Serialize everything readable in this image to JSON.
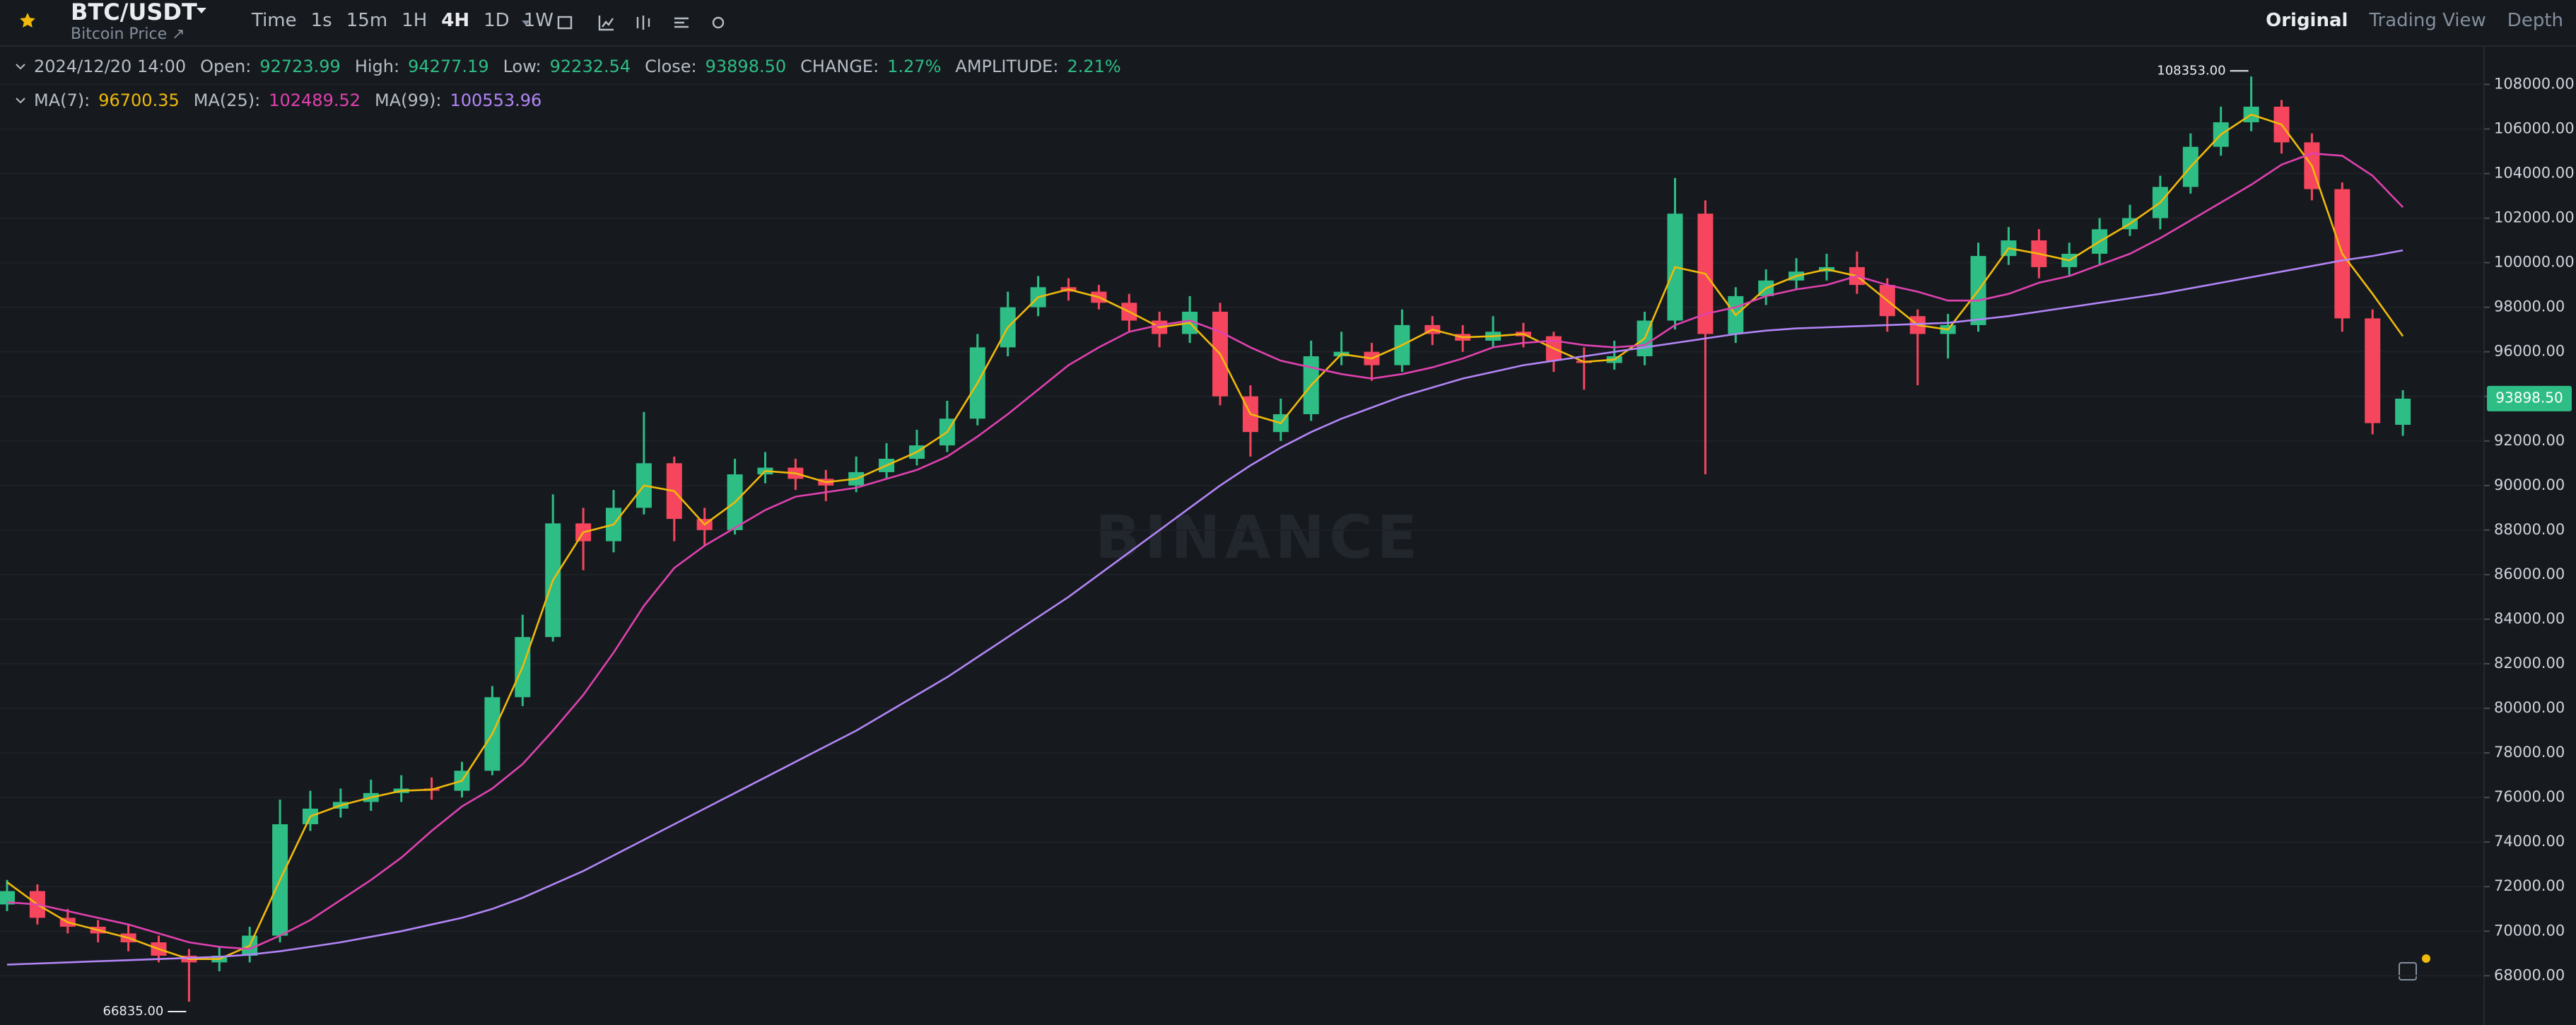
{
  "header": {
    "symbol": "BTC/USDT",
    "subtitle": "Bitcoin Price ↗",
    "intervals": [
      "Time",
      "1s",
      "15m",
      "1H",
      "4H",
      "1D",
      "1W"
    ],
    "active_interval": "4H",
    "views": [
      "Original",
      "Trading View",
      "Depth"
    ]
  },
  "info": {
    "date": "2024/12/20 14:00",
    "labels": [
      "Open:",
      "High:",
      "Low:",
      "Close:",
      "CHANGE:",
      "AMPLITUDE:"
    ],
    "change": "1.27%",
    "amplitude": "2.21%"
  },
  "chart_data": {
    "type": "candlestick",
    "up_color": "#2ebd85",
    "down_color": "#f6465d",
    "grid": true,
    "open": [
      71200,
      71800,
      70600,
      70200,
      69900,
      69500,
      68900,
      68600,
      68900,
      69800,
      74800,
      75500,
      75800,
      76200,
      76400,
      76300,
      77200,
      80500,
      83200,
      88300,
      87500,
      89000,
      91000,
      88500,
      88000,
      90500,
      90800,
      90300,
      90000,
      90600,
      91200,
      91800,
      93000,
      96200,
      98000,
      98900,
      98700,
      98200,
      97400,
      96800,
      97800,
      94000,
      92400,
      93200,
      95800,
      96000,
      95400,
      97200,
      96800,
      96500,
      96900,
      96700,
      95600,
      95500,
      95800,
      97400,
      102200,
      96800,
      98500,
      99200,
      99600,
      99800,
      99000,
      97600,
      96800,
      97200,
      100300,
      101000,
      99800,
      100400,
      101500,
      102000,
      103400,
      105200,
      106300,
      107000,
      105400,
      103300,
      97500,
      92723.99
    ],
    "high": [
      72300,
      72100,
      71000,
      70500,
      70300,
      69800,
      69200,
      69300,
      70200,
      75900,
      76300,
      76400,
      76800,
      77000,
      76900,
      77600,
      81000,
      84200,
      89600,
      89000,
      89800,
      93300,
      91300,
      89000,
      91200,
      91500,
      91200,
      90700,
      91300,
      91900,
      92500,
      93800,
      96800,
      98700,
      99400,
      99300,
      99000,
      98600,
      97800,
      98500,
      98200,
      94500,
      93900,
      96500,
      96900,
      96400,
      97900,
      97600,
      97200,
      97600,
      97300,
      96900,
      96200,
      96500,
      97800,
      103800,
      102800,
      98900,
      99700,
      100200,
      100400,
      100500,
      99300,
      97900,
      97700,
      100900,
      101600,
      101500,
      100900,
      102000,
      102600,
      103900,
      105800,
      107000,
      108353,
      107300,
      105800,
      103600,
      97900,
      94277.19
    ],
    "low": [
      70900,
      70300,
      69900,
      69500,
      69100,
      68600,
      66835,
      68200,
      68600,
      69500,
      74500,
      75100,
      75400,
      75800,
      75900,
      76000,
      77000,
      80100,
      83000,
      86200,
      87000,
      88700,
      87500,
      87300,
      87800,
      90100,
      89800,
      89300,
      89700,
      90300,
      90900,
      91500,
      92700,
      95800,
      97600,
      98300,
      97900,
      96900,
      96200,
      96400,
      93600,
      91300,
      92000,
      92900,
      95400,
      94700,
      95100,
      96300,
      96000,
      96200,
      96200,
      95100,
      94300,
      95200,
      95400,
      97000,
      90500,
      96400,
      98100,
      98800,
      99200,
      98600,
      96900,
      94500,
      95700,
      96900,
      99900,
      99300,
      99400,
      99900,
      101200,
      101500,
      103100,
      104800,
      105900,
      104900,
      102800,
      96900,
      92300,
      92232.54
    ],
    "close": [
      71800,
      70600,
      70200,
      69900,
      69500,
      68900,
      68600,
      68900,
      69800,
      74800,
      75500,
      75800,
      76200,
      76400,
      76300,
      77200,
      80500,
      83200,
      88300,
      87500,
      89000,
      91000,
      88500,
      88000,
      90500,
      90800,
      90300,
      90000,
      90600,
      91200,
      91800,
      93000,
      96200,
      98000,
      98900,
      98700,
      98200,
      97400,
      96800,
      97800,
      94000,
      92400,
      93200,
      95800,
      96000,
      95400,
      97200,
      96800,
      96500,
      96900,
      96700,
      95600,
      95500,
      95800,
      97400,
      102200,
      96800,
      98500,
      99200,
      99600,
      99800,
      99000,
      97600,
      96800,
      97200,
      100300,
      101000,
      99800,
      100400,
      101500,
      102000,
      103400,
      105200,
      106300,
      107000,
      105400,
      103300,
      97500,
      92800,
      93898.5
    ],
    "series": [
      {
        "name": "MA(7):",
        "color": "#f0b90b",
        "values": [
          72200,
          71200,
          70400,
          70050,
          69700,
          69200,
          68750,
          68750,
          69350,
          72300,
          75150,
          75650,
          76000,
          76300,
          76350,
          76750,
          78850,
          81850,
          85750,
          87900,
          88250,
          90000,
          89750,
          88250,
          89250,
          90650,
          90550,
          90150,
          90300,
          90900,
          91500,
          92400,
          94600,
          97100,
          98450,
          98800,
          98450,
          97800,
          97100,
          97300,
          95900,
          93200,
          92800,
          94500,
          95900,
          95700,
          96300,
          97000,
          96650,
          96700,
          96800,
          96150,
          95550,
          95650,
          96600,
          99800,
          99500,
          97650,
          98850,
          99400,
          99700,
          99400,
          98300,
          97200,
          97000,
          98750,
          100650,
          100400,
          100100,
          100950,
          101750,
          102700,
          104300,
          105750,
          106650,
          106200,
          104350,
          100400,
          98600,
          96700.35
        ]
      },
      {
        "name": "MA(25):",
        "color": "#e041b0",
        "values": [
          71300,
          71200,
          70900,
          70600,
          70300,
          69900,
          69500,
          69300,
          69200,
          69800,
          70500,
          71400,
          72300,
          73300,
          74500,
          75600,
          76400,
          77500,
          79000,
          80600,
          82500,
          84600,
          86300,
          87300,
          88100,
          88900,
          89500,
          89700,
          89900,
          90300,
          90700,
          91300,
          92200,
          93200,
          94300,
          95400,
          96200,
          96900,
          97200,
          97400,
          96900,
          96200,
          95600,
          95300,
          95000,
          94800,
          95000,
          95300,
          95700,
          96200,
          96400,
          96500,
          96300,
          96200,
          96300,
          97200,
          97700,
          98000,
          98500,
          98800,
          99000,
          99400,
          99000,
          98700,
          98300,
          98300,
          98600,
          99100,
          99400,
          99900,
          100400,
          101100,
          101900,
          102700,
          103500,
          104400,
          104900,
          104800,
          103900,
          102489.52
        ]
      },
      {
        "name": "MA(99):",
        "color": "#b385f8",
        "values": [
          68500,
          68550,
          68600,
          68650,
          68700,
          68750,
          68800,
          68850,
          68950,
          69100,
          69300,
          69500,
          69750,
          70000,
          70300,
          70600,
          71000,
          71500,
          72100,
          72700,
          73400,
          74100,
          74800,
          75500,
          76200,
          76900,
          77600,
          78300,
          79000,
          79800,
          80600,
          81400,
          82300,
          83200,
          84100,
          85000,
          86000,
          87000,
          88000,
          89000,
          90000,
          90900,
          91700,
          92400,
          93000,
          93500,
          94000,
          94400,
          94800,
          95100,
          95400,
          95600,
          95800,
          96000,
          96200,
          96400,
          96600,
          96800,
          96950,
          97050,
          97100,
          97150,
          97200,
          97250,
          97300,
          97450,
          97600,
          97800,
          98000,
          98200,
          98400,
          98600,
          98850,
          99100,
          99350,
          99600,
          99850,
          100100,
          100300,
          100553.96
        ]
      }
    ],
    "ylim": [
      65790,
      109694
    ],
    "yticks": [
      {
        "value": 68000,
        "label": "68000.00"
      },
      {
        "value": 70000,
        "label": "70000.00"
      },
      {
        "value": 72000,
        "label": "72000.00"
      },
      {
        "value": 74000,
        "label": "74000.00"
      },
      {
        "value": 76000,
        "label": "76000.00"
      },
      {
        "value": 78000,
        "label": "78000.00"
      },
      {
        "value": 80000,
        "label": "80000.00"
      },
      {
        "value": 82000,
        "label": "82000.00"
      },
      {
        "value": 84000,
        "label": "84000.00"
      },
      {
        "value": 86000,
        "label": "86000.00"
      },
      {
        "value": 88000,
        "label": "88000.00"
      },
      {
        "value": 90000,
        "label": "90000.00"
      },
      {
        "value": 92000,
        "label": "92000.00"
      },
      {
        "value": 94000,
        "label": "94000.00"
      },
      {
        "value": 96000,
        "label": "96000.00"
      },
      {
        "value": 98000,
        "label": "98000.00"
      },
      {
        "value": 100000,
        "label": "100000.00"
      },
      {
        "value": 102000,
        "label": "102000.00"
      },
      {
        "value": 104000,
        "label": "104000.00"
      },
      {
        "value": 106000,
        "label": "106000.00"
      },
      {
        "value": 108000,
        "label": "108000.00"
      }
    ],
    "max_label": "108353.00",
    "min_label": "66835.00",
    "last_price_label": "93898.50",
    "watermark": "BINANCE"
  }
}
